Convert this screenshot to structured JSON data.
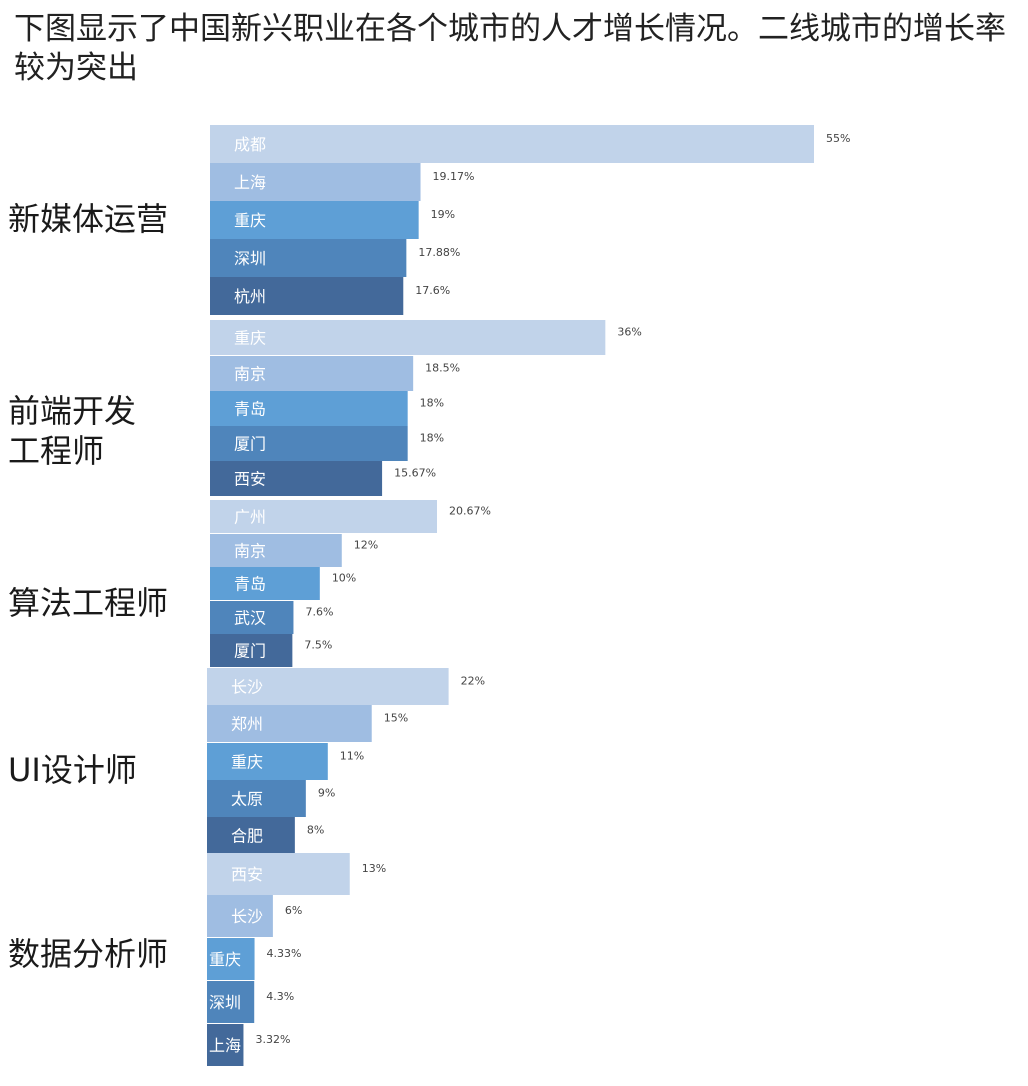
{
  "title": "下图显示了中国新兴职业在各个城市的人才增长情况。二线城市的增长率较为突出",
  "chart_data": {
    "type": "bar",
    "orientation": "horizontal",
    "xlim": [
      0,
      55
    ],
    "grid": false,
    "legend": "none",
    "value_suffix": "%",
    "shade_colors": [
      "#c1d3ea",
      "#9fbde2",
      "#5e9fd6",
      "#4f85bb",
      "#43699a"
    ],
    "groups": [
      {
        "category": "新媒体运营",
        "cities": [
          "成都",
          "上海",
          "重庆",
          "深圳",
          "杭州"
        ],
        "values": [
          55,
          19.17,
          19,
          17.88,
          17.6
        ],
        "labels": [
          "55%",
          "19.17%",
          "19%",
          "17.88%",
          "17.6%"
        ]
      },
      {
        "category": "前端开发工程师",
        "category_lines": [
          "前端开发",
          "工程师"
        ],
        "cities": [
          "重庆",
          "南京",
          "青岛",
          "厦门",
          "西安"
        ],
        "values": [
          36,
          18.5,
          18,
          18,
          15.67
        ],
        "labels": [
          "36%",
          "18.5%",
          "18%",
          "18%",
          "15.67%"
        ]
      },
      {
        "category": "算法工程师",
        "cities": [
          "广州",
          "南京",
          "青岛",
          "武汉",
          "厦门"
        ],
        "values": [
          20.67,
          12,
          10,
          7.6,
          7.5
        ],
        "labels": [
          "20.67%",
          "12%",
          "10%",
          "7.6%",
          "7.5%"
        ]
      },
      {
        "category": "UI设计师",
        "cities": [
          "长沙",
          "郑州",
          "重庆",
          "太原",
          "合肥"
        ],
        "values": [
          22,
          15,
          11,
          9,
          8
        ],
        "labels": [
          "22%",
          "15%",
          "11%",
          "9%",
          "8%"
        ]
      },
      {
        "category": "数据分析师",
        "cities": [
          "西安",
          "长沙",
          "重庆",
          "深圳",
          "上海"
        ],
        "values": [
          13,
          6,
          4.33,
          4.3,
          3.32
        ],
        "labels": [
          "13%",
          "6%",
          "4.33%",
          "4.3%",
          "3.32%"
        ]
      }
    ]
  }
}
